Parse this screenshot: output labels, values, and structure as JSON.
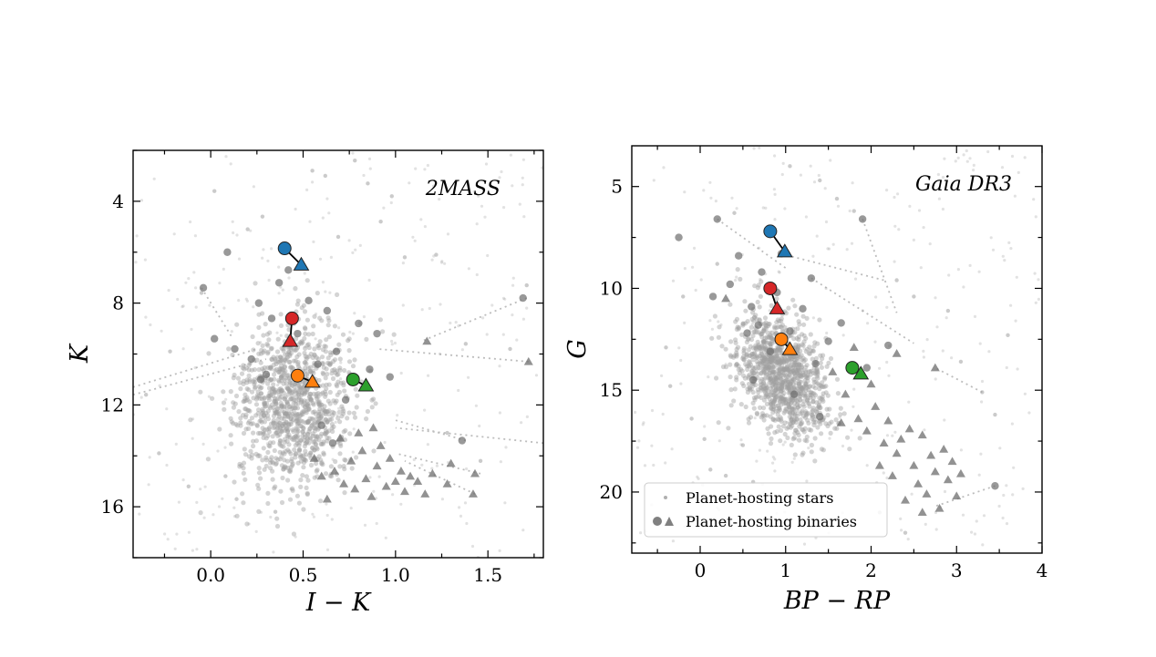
{
  "chart_data": [
    {
      "type": "scatter",
      "panel_label": "2MASS",
      "xlabel": "I − K",
      "ylabel": "K",
      "xlim": [
        -0.42,
        1.8
      ],
      "ylim": [
        18.0,
        2.0
      ],
      "y_inverted": true,
      "x_ticks": [
        "0.0",
        "0.5",
        "1.0",
        "1.5"
      ],
      "x_tick_values": [
        0.0,
        0.5,
        1.0,
        1.5
      ],
      "y_ticks": [
        "4",
        "8",
        "12",
        "16"
      ],
      "y_tick_values": [
        4,
        8,
        12,
        16
      ],
      "background_cloud": {
        "center": [
          0.45,
          12.0
        ],
        "spread": [
          0.16,
          1.6
        ],
        "count": 1100
      },
      "background_outliers": [
        [
          -0.35,
          11.6
        ],
        [
          -0.28,
          13.9
        ],
        [
          -0.12,
          15.2
        ],
        [
          -0.05,
          7.6
        ],
        [
          0.02,
          3.6
        ],
        [
          0.08,
          14.8
        ],
        [
          0.14,
          15.7
        ],
        [
          0.2,
          5.1
        ],
        [
          0.28,
          4.6
        ],
        [
          0.62,
          3.0
        ],
        [
          0.78,
          2.4
        ],
        [
          0.85,
          3.3
        ],
        [
          0.92,
          4.8
        ],
        [
          1.05,
          6.2
        ],
        [
          1.22,
          6.1
        ],
        [
          1.28,
          13.1
        ],
        [
          1.38,
          9.6
        ],
        [
          1.46,
          14.2
        ],
        [
          1.62,
          9.8
        ],
        [
          1.71,
          7.3
        ],
        [
          -0.22,
          9.9
        ],
        [
          0.35,
          16.2
        ],
        [
          0.55,
          2.8
        ],
        [
          0.69,
          5.4
        ],
        [
          0.98,
          3.8
        ]
      ],
      "binary_companions": [
        [
          -0.04,
          7.4
        ],
        [
          0.02,
          9.4
        ],
        [
          0.09,
          6.0
        ],
        [
          0.13,
          9.8
        ],
        [
          0.22,
          10.2
        ],
        [
          0.26,
          8.0
        ],
        [
          0.3,
          10.8
        ],
        [
          0.33,
          8.6
        ],
        [
          0.37,
          7.2
        ],
        [
          0.42,
          6.7
        ],
        [
          0.47,
          9.2
        ],
        [
          0.53,
          7.9
        ],
        [
          0.58,
          10.4
        ],
        [
          0.63,
          8.3
        ],
        [
          0.68,
          9.9
        ],
        [
          0.73,
          11.8
        ],
        [
          0.8,
          8.8
        ],
        [
          0.86,
          10.6
        ],
        [
          0.9,
          9.2
        ],
        [
          0.97,
          10.9
        ],
        [
          1.69,
          7.8
        ],
        [
          1.36,
          13.4
        ],
        [
          0.27,
          11.0
        ],
        [
          0.6,
          12.8
        ],
        [
          0.66,
          13.5
        ]
      ],
      "binary_triangles": [
        [
          0.63,
          15.7
        ],
        [
          0.67,
          14.6
        ],
        [
          0.72,
          15.1
        ],
        [
          0.76,
          14.2
        ],
        [
          0.78,
          15.3
        ],
        [
          0.82,
          13.8
        ],
        [
          0.84,
          14.9
        ],
        [
          0.87,
          15.6
        ],
        [
          0.9,
          14.4
        ],
        [
          0.92,
          13.6
        ],
        [
          0.95,
          15.2
        ],
        [
          0.97,
          14.1
        ],
        [
          1.0,
          15.0
        ],
        [
          1.03,
          14.6
        ],
        [
          1.05,
          15.4
        ],
        [
          1.08,
          14.8
        ],
        [
          1.12,
          15.0
        ],
        [
          1.16,
          15.5
        ],
        [
          1.2,
          14.7
        ],
        [
          1.28,
          15.1
        ],
        [
          1.3,
          14.3
        ],
        [
          1.43,
          14.7
        ],
        [
          1.42,
          15.5
        ],
        [
          1.72,
          10.3
        ],
        [
          1.17,
          9.5
        ],
        [
          0.56,
          14.1
        ],
        [
          0.6,
          14.8
        ],
        [
          0.7,
          13.3
        ],
        [
          0.88,
          12.9
        ],
        [
          0.8,
          13.1
        ]
      ],
      "tie_lines": [
        [
          [
            -0.42,
            11.6
          ],
          [
            0.3,
            10.2
          ]
        ],
        [
          [
            -0.42,
            11.3
          ],
          [
            0.25,
            9.8
          ]
        ],
        [
          [
            1.71,
            7.8
          ],
          [
            1.14,
            9.5
          ]
        ],
        [
          [
            1.72,
            10.3
          ],
          [
            0.9,
            9.8
          ]
        ],
        [
          [
            1.8,
            13.5
          ],
          [
            1.0,
            12.9
          ]
        ],
        [
          [
            1.46,
            14.7
          ],
          [
            1.0,
            13.9
          ]
        ],
        [
          [
            1.38,
            13.4
          ],
          [
            1.0,
            12.6
          ]
        ],
        [
          [
            1.43,
            15.5
          ],
          [
            1.05,
            14.2
          ]
        ],
        [
          [
            -0.05,
            7.4
          ],
          [
            0.12,
            9.4
          ]
        ]
      ],
      "highlighted_pairs": [
        {
          "color": "#1f77b4",
          "primary": [
            0.4,
            5.85
          ],
          "secondary": [
            0.49,
            6.5
          ]
        },
        {
          "color": "#d62728",
          "primary": [
            0.44,
            8.6
          ],
          "secondary": [
            0.43,
            9.5
          ]
        },
        {
          "color": "#ff7f0e",
          "primary": [
            0.47,
            10.85
          ],
          "secondary": [
            0.55,
            11.1
          ]
        },
        {
          "color": "#2ca02c",
          "primary": [
            0.77,
            11.0
          ],
          "secondary": [
            0.84,
            11.25
          ]
        }
      ]
    },
    {
      "type": "scatter",
      "panel_label": "Gaia DR3",
      "xlabel": "BP − RP",
      "ylabel": "G",
      "xlim": [
        -0.8,
        4.0
      ],
      "ylim": [
        23.0,
        3.0
      ],
      "y_inverted": true,
      "x_ticks": [
        "0",
        "1",
        "2",
        "3",
        "4"
      ],
      "x_tick_values": [
        0,
        1,
        2,
        3,
        4
      ],
      "y_ticks": [
        "5",
        "10",
        "15",
        "20"
      ],
      "y_tick_values": [
        5,
        10,
        15,
        20
      ],
      "background_cloud": {
        "center": [
          0.95,
          14.2
        ],
        "spread": [
          0.28,
          1.4
        ],
        "count": 1100
      },
      "background_outliers": [
        [
          -0.4,
          12.9
        ],
        [
          -0.35,
          14.8
        ],
        [
          -0.1,
          16.4
        ],
        [
          0.05,
          17.4
        ],
        [
          0.12,
          18.9
        ],
        [
          0.3,
          19.2
        ],
        [
          0.5,
          17.7
        ],
        [
          0.62,
          19.5
        ],
        [
          1.05,
          4.0
        ],
        [
          1.4,
          4.7
        ],
        [
          1.6,
          5.6
        ],
        [
          1.8,
          6.2
        ],
        [
          2.3,
          9.6
        ],
        [
          2.5,
          10.4
        ],
        [
          2.9,
          11.1
        ],
        [
          3.05,
          13.6
        ],
        [
          3.3,
          15.1
        ],
        [
          3.45,
          16.2
        ],
        [
          2.1,
          21.0
        ],
        [
          2.4,
          22.0
        ],
        [
          0.2,
          8.8
        ],
        [
          -0.2,
          10.4
        ],
        [
          0.4,
          6.3
        ],
        [
          1.2,
          20.2
        ],
        [
          3.6,
          12.3
        ]
      ],
      "binary_companions": [
        [
          -0.25,
          7.5
        ],
        [
          0.2,
          6.6
        ],
        [
          0.15,
          10.4
        ],
        [
          0.35,
          9.8
        ],
        [
          0.45,
          8.4
        ],
        [
          0.55,
          12.2
        ],
        [
          0.6,
          10.9
        ],
        [
          0.72,
          9.2
        ],
        [
          0.82,
          13.1
        ],
        [
          0.95,
          8.3
        ],
        [
          1.05,
          12.1
        ],
        [
          1.2,
          11.0
        ],
        [
          1.3,
          9.5
        ],
        [
          1.35,
          13.7
        ],
        [
          1.5,
          12.6
        ],
        [
          1.65,
          11.7
        ],
        [
          1.9,
          6.6
        ],
        [
          1.95,
          13.9
        ],
        [
          2.2,
          12.8
        ],
        [
          3.45,
          19.7
        ],
        [
          0.68,
          11.8
        ],
        [
          0.9,
          10.2
        ],
        [
          1.1,
          15.2
        ],
        [
          1.4,
          16.3
        ],
        [
          0.62,
          14.5
        ]
      ],
      "binary_triangles": [
        [
          0.3,
          10.5
        ],
        [
          1.55,
          14.1
        ],
        [
          1.7,
          15.2
        ],
        [
          1.85,
          16.4
        ],
        [
          1.95,
          17.0
        ],
        [
          2.05,
          15.8
        ],
        [
          2.1,
          18.7
        ],
        [
          2.15,
          17.6
        ],
        [
          2.2,
          16.5
        ],
        [
          2.25,
          19.2
        ],
        [
          2.3,
          18.1
        ],
        [
          2.35,
          17.4
        ],
        [
          2.4,
          20.4
        ],
        [
          2.45,
          16.9
        ],
        [
          2.5,
          18.7
        ],
        [
          2.55,
          19.6
        ],
        [
          2.6,
          17.2
        ],
        [
          2.65,
          20.1
        ],
        [
          2.7,
          18.2
        ],
        [
          2.75,
          19.0
        ],
        [
          2.8,
          20.8
        ],
        [
          2.85,
          17.9
        ],
        [
          2.9,
          19.4
        ],
        [
          2.95,
          18.5
        ],
        [
          3.0,
          20.2
        ],
        [
          2.6,
          21.0
        ],
        [
          2.75,
          13.9
        ],
        [
          2.3,
          13.2
        ],
        [
          1.8,
          12.9
        ],
        [
          2.0,
          14.7
        ],
        [
          1.65,
          16.6
        ],
        [
          3.05,
          19.1
        ]
      ],
      "tie_lines": [
        [
          [
            0.95,
            8.3
          ],
          [
            2.15,
            9.6
          ]
        ],
        [
          [
            1.3,
            9.5
          ],
          [
            2.5,
            12.7
          ]
        ],
        [
          [
            3.45,
            19.7
          ],
          [
            2.75,
            20.7
          ]
        ],
        [
          [
            0.2,
            6.6
          ],
          [
            1.0,
            9.0
          ]
        ],
        [
          [
            1.9,
            6.6
          ],
          [
            2.3,
            11.2
          ]
        ],
        [
          [
            3.3,
            15.1
          ],
          [
            2.75,
            13.9
          ]
        ]
      ],
      "highlighted_pairs": [
        {
          "color": "#1f77b4",
          "primary": [
            0.82,
            7.2
          ],
          "secondary": [
            0.99,
            8.2
          ]
        },
        {
          "color": "#d62728",
          "primary": [
            0.82,
            10.0
          ],
          "secondary": [
            0.9,
            11.0
          ]
        },
        {
          "color": "#ff7f0e",
          "primary": [
            0.95,
            12.5
          ],
          "secondary": [
            1.05,
            13.0
          ]
        },
        {
          "color": "#2ca02c",
          "primary": [
            1.78,
            13.9
          ],
          "secondary": [
            1.88,
            14.2
          ]
        }
      ]
    }
  ],
  "legend": {
    "placement": "lower-left",
    "items": [
      {
        "label": "Planet-hosting stars"
      },
      {
        "label": "Planet-hosting binaries"
      }
    ]
  }
}
